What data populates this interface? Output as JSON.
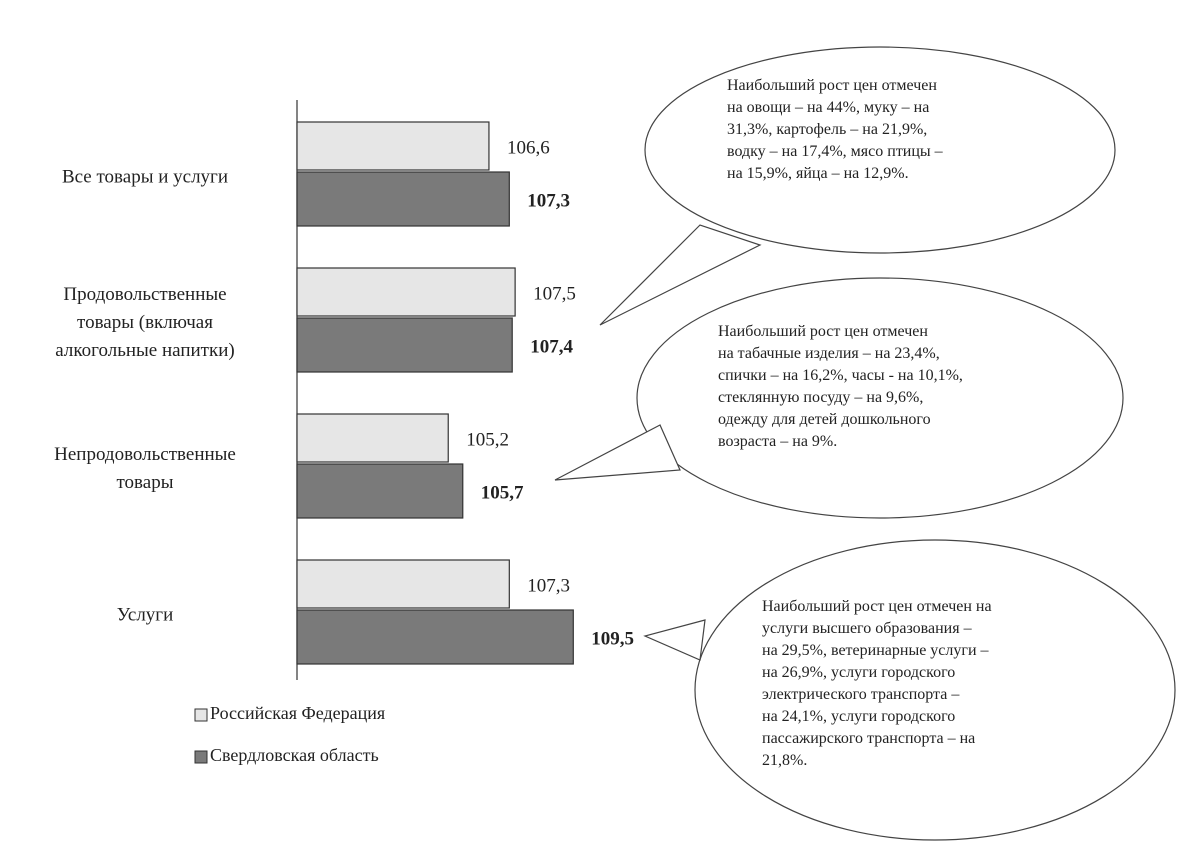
{
  "chart_data": {
    "type": "barh",
    "categories": [
      "Все товары и   услуги",
      "Продовольственные\nтовары (включая\nалкогольные напитки)",
      "Непродовольственные\nтовары",
      "Услуги"
    ],
    "series": [
      {
        "name": "Российская Федерация",
        "color": "#e6e6e6",
        "values": [
          106.6,
          107.5,
          105.2,
          107.3
        ],
        "value_labels": [
          "106,6",
          "107,5",
          "105,2",
          "107,3"
        ]
      },
      {
        "name": "Свердловская область",
        "color": "#7a7a7a",
        "values": [
          107.3,
          107.4,
          105.7,
          109.5
        ],
        "value_labels": [
          "107,3",
          "107,4",
          "105,7",
          "109,5"
        ]
      }
    ],
    "xlim": [
      100,
      112
    ],
    "annotations": [
      "Наибольший рост цен отмечен\nна овощи – на 44%, муку – на\n31,3%, картофель – на 21,9%,\nводку – на 17,4%, мясо птицы –\nна 15,9%, яйца – на 12,9%.",
      "Наибольший рост цен отмечен\nна табачные изделия – на 23,4%,\nспички – на 16,2%, часы - на 10,1%,\nстеклянную посуду – на 9,6%,\nодежду для детей дошкольного\nвозраста – на 9%.",
      "Наибольший рост цен отмечен на\nуслуги высшего образования –\nна 29,5%, ветеринарные услуги –\nна 26,9%, услуги городского\nэлектрического транспорта –\nна 24,1%, услуги городского\nпассажирского транспорта – на\n21,8%."
    ]
  }
}
